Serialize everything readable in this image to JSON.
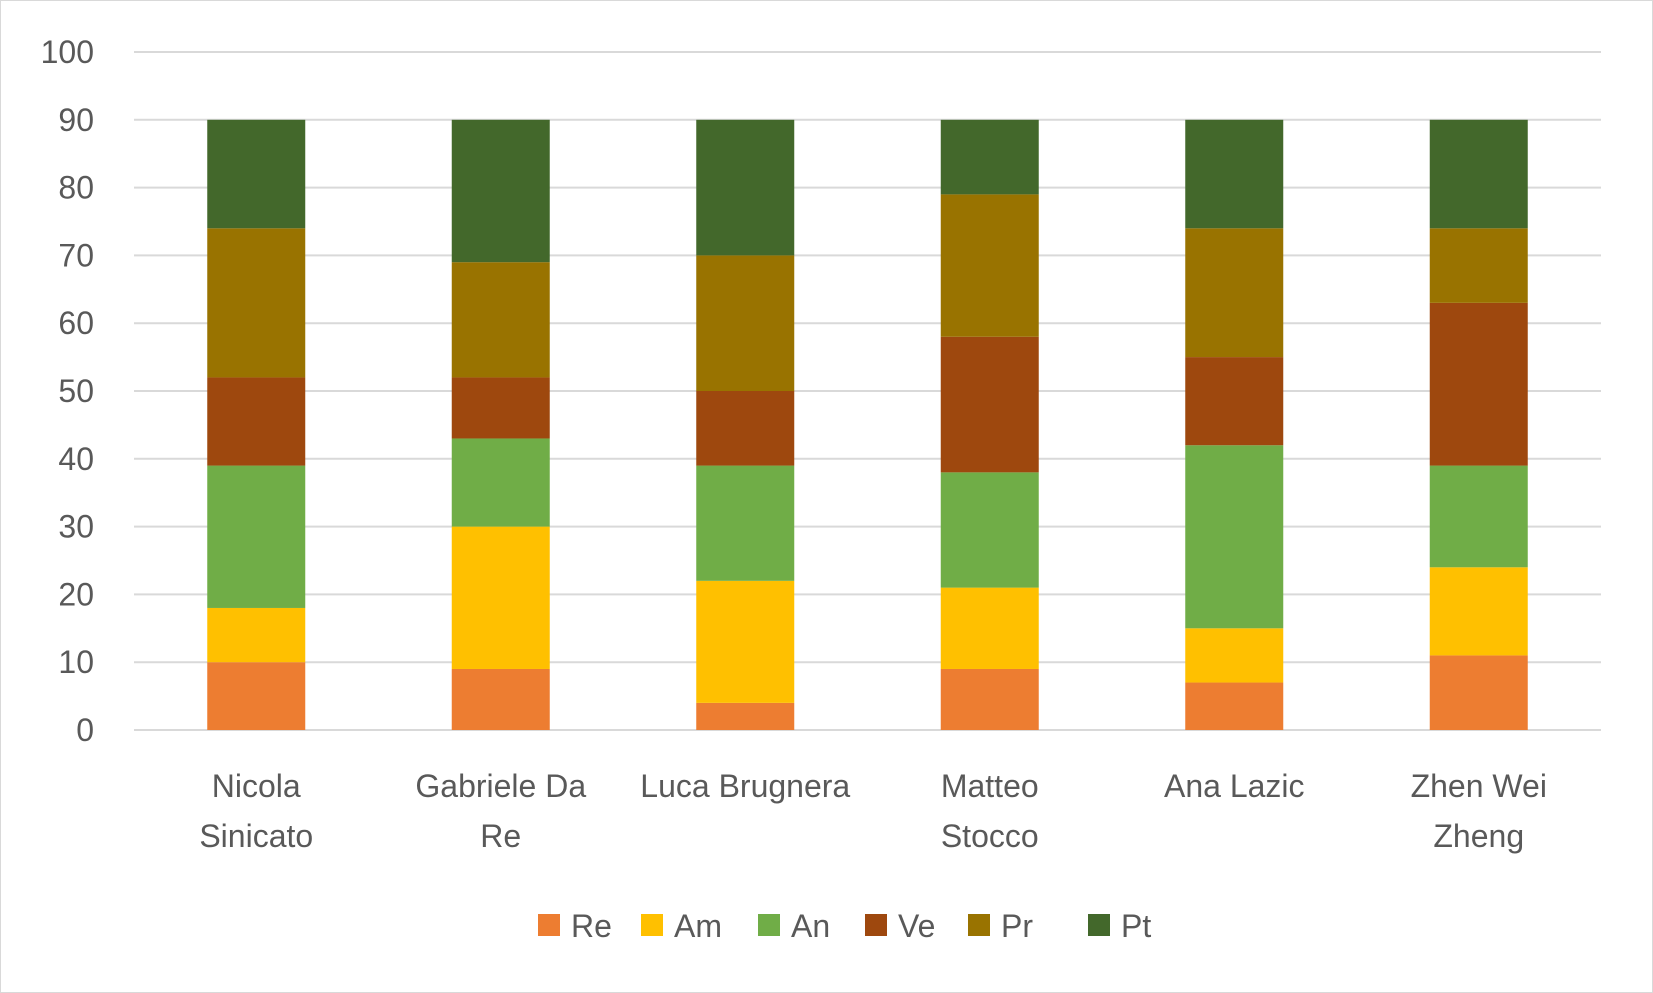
{
  "chart_data": {
    "type": "bar",
    "stacked": true,
    "categories": [
      [
        "Nicola",
        "Sinicato"
      ],
      [
        "Gabriele Da",
        "Re"
      ],
      [
        "Luca Brugnera"
      ],
      [
        "Matteo",
        "Stocco"
      ],
      [
        "Ana Lazic"
      ],
      [
        "Zhen Wei",
        "Zheng"
      ]
    ],
    "series": [
      {
        "name": "Re",
        "color": "#ED7D31",
        "values": [
          10,
          9,
          4,
          9,
          7,
          11
        ]
      },
      {
        "name": "Am",
        "color": "#FFC000",
        "values": [
          8,
          21,
          18,
          12,
          8,
          13
        ]
      },
      {
        "name": "An",
        "color": "#70AD47",
        "values": [
          21,
          13,
          17,
          17,
          27,
          15
        ]
      },
      {
        "name": "Ve",
        "color": "#9E480E",
        "values": [
          13,
          9,
          11,
          20,
          13,
          24
        ]
      },
      {
        "name": "Pr",
        "color": "#997300",
        "values": [
          22,
          17,
          20,
          21,
          19,
          11
        ]
      },
      {
        "name": "Pt",
        "color": "#43682B",
        "values": [
          16,
          21,
          20,
          11,
          16,
          16
        ]
      }
    ],
    "ylim": [
      0,
      100
    ],
    "ytick_step": 10,
    "grid": true,
    "legend_position": "bottom",
    "title": "",
    "xlabel": "",
    "ylabel": ""
  }
}
